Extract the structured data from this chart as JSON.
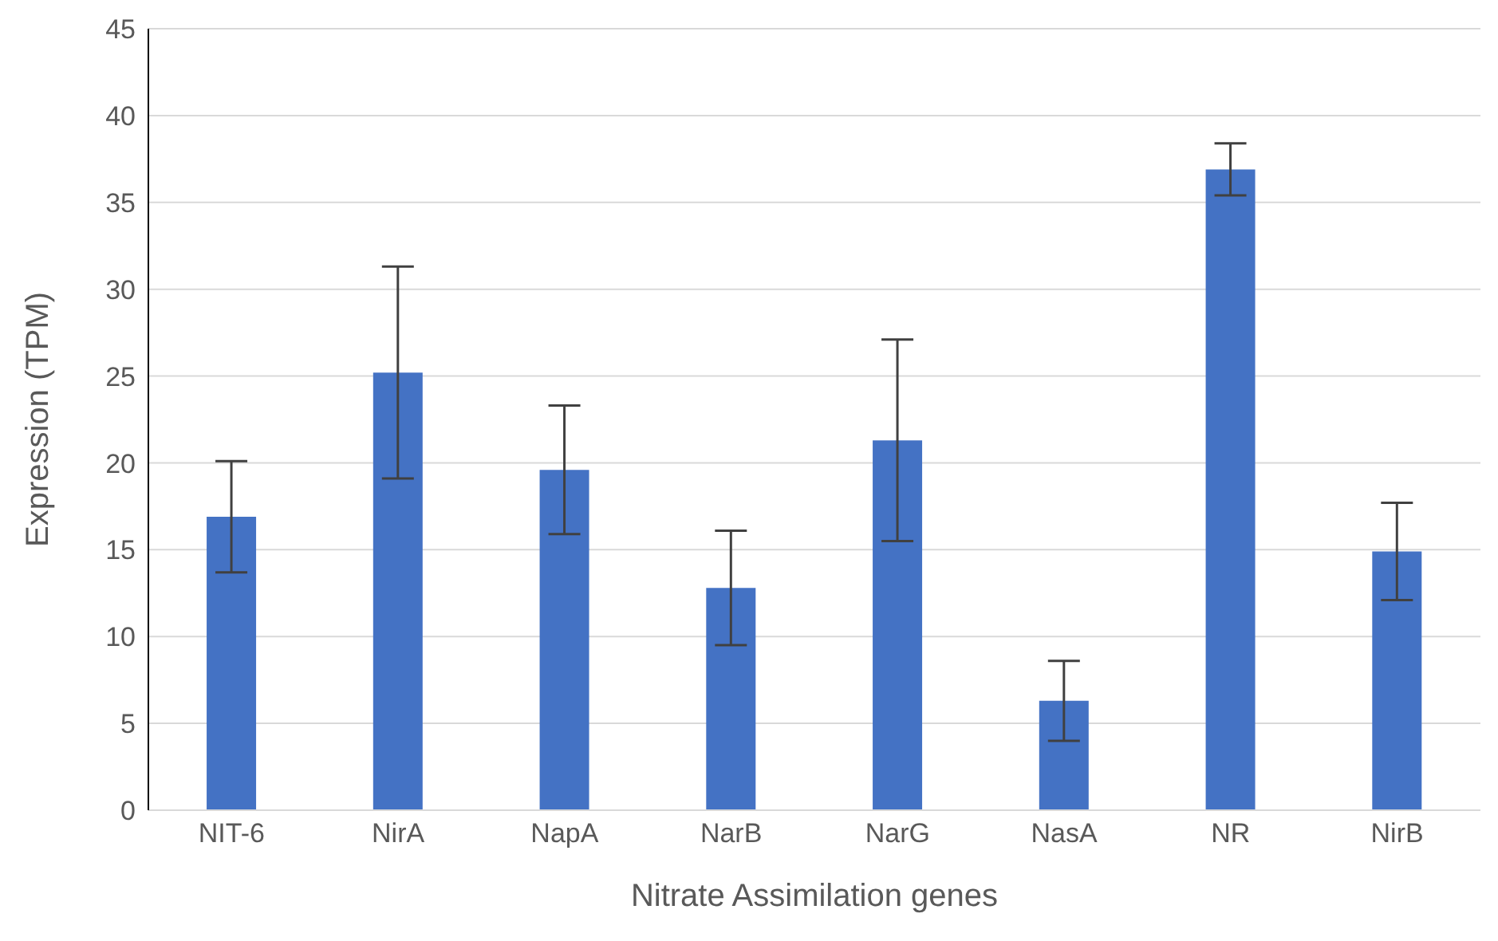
{
  "chart_data": {
    "type": "bar",
    "xlabel": "Nitrate Assimilation genes",
    "ylabel": "Expression (TPM)",
    "categories": [
      "NIT-6",
      "NirA",
      "NapA",
      "NarB",
      "NarG",
      "NasA",
      "NR",
      "NirB"
    ],
    "values": [
      16.9,
      25.2,
      19.6,
      12.8,
      21.3,
      6.3,
      36.9,
      14.9
    ],
    "errors": [
      3.2,
      6.1,
      3.7,
      3.3,
      5.8,
      2.3,
      1.5,
      2.8
    ],
    "color": "#4472c4",
    "ylim": [
      0,
      45
    ],
    "yticks": [
      0,
      5,
      10,
      15,
      20,
      25,
      30,
      35,
      40,
      45
    ],
    "grid": "y"
  }
}
